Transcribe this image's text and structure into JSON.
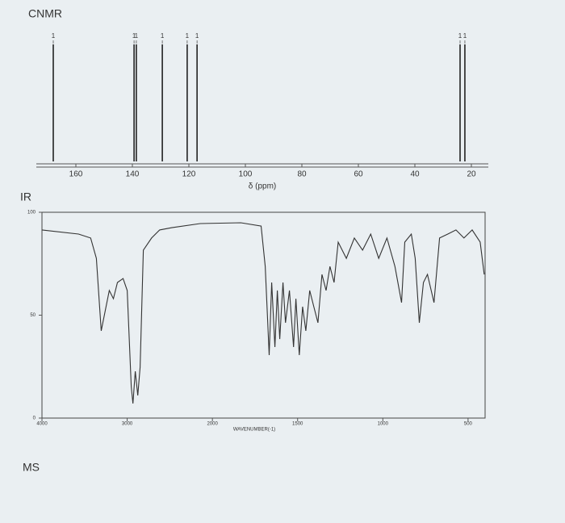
{
  "chart_data": [
    {
      "type": "stick",
      "title": "CNMR",
      "xlabel": "δ (ppm)",
      "x": [
        168.0,
        139.4,
        138.6,
        129.4,
        120.6,
        117.1,
        24.0,
        22.3
      ],
      "values": [
        1,
        1,
        1,
        1,
        1,
        1,
        1,
        1
      ],
      "xlim": [
        174,
        14
      ],
      "xticks": [
        160,
        140,
        120,
        100,
        80,
        60,
        40,
        20
      ],
      "color": "#222222"
    },
    {
      "type": "line",
      "title": "IR",
      "xlabel": "WAVENUMBER(-1)",
      "x": [
        4000,
        3571,
        3429,
        3362,
        3305,
        3257,
        3210,
        3162,
        3114,
        3048,
        3000,
        2952,
        2933,
        2905,
        2876,
        2848,
        2810,
        2714,
        2619,
        2476,
        2143,
        1833,
        1714,
        1690,
        1667,
        1652,
        1633,
        1619,
        1605,
        1586,
        1571,
        1548,
        1524,
        1510,
        1490,
        1471,
        1452,
        1429,
        1405,
        1381,
        1357,
        1333,
        1310,
        1286,
        1262,
        1214,
        1167,
        1119,
        1071,
        1024,
        976,
        929,
        890,
        871,
        833,
        810,
        786,
        762,
        738,
        700,
        667,
        619,
        571,
        524,
        476,
        429,
        405
      ],
      "values": [
        91.4,
        89.4,
        87.5,
        77.6,
        42.4,
        52.2,
        62,
        58,
        65.9,
        67.8,
        62,
        15.3,
        7.1,
        22.7,
        11,
        24.7,
        81.6,
        87.5,
        91.4,
        92.5,
        94.5,
        94.9,
        93.3,
        73.7,
        30.6,
        65.9,
        34.5,
        62,
        38.4,
        65.9,
        46.3,
        62,
        34.5,
        58,
        30.6,
        54.1,
        42.4,
        62,
        54.1,
        46.3,
        69.8,
        62,
        73.7,
        65.9,
        85.5,
        77.6,
        87.5,
        81.6,
        89.4,
        77.6,
        87.5,
        73.7,
        56.1,
        85.5,
        89.4,
        77.6,
        46.3,
        65.9,
        69.8,
        56.1,
        87.5,
        89.4,
        91.4,
        87.5,
        91.4,
        85.5,
        69.8
      ],
      "xlim": [
        4000,
        400
      ],
      "xticks": [
        4000,
        3000,
        2000,
        1500,
        1000,
        500
      ],
      "ylim": [
        0,
        100
      ],
      "yticks": [
        0,
        50,
        100
      ],
      "color": "#333333"
    }
  ],
  "ms_title": "MS"
}
